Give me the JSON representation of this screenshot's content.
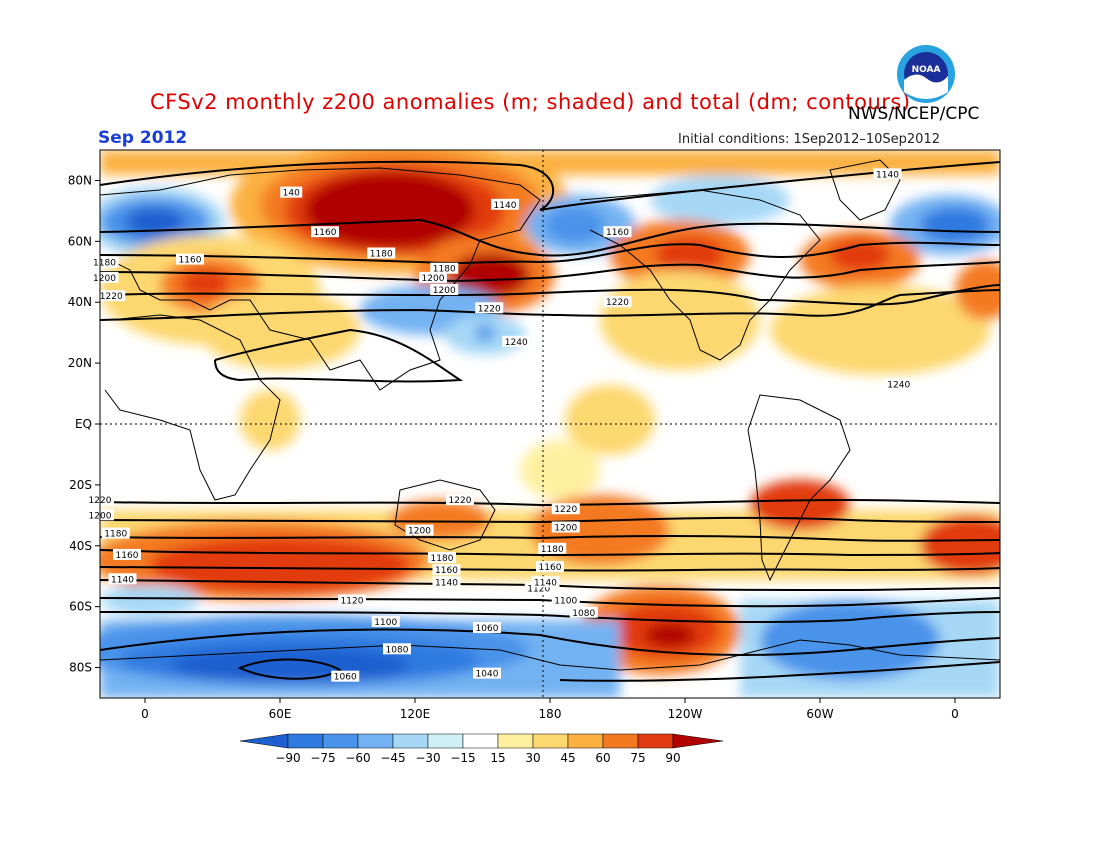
{
  "title": "CFSv2 monthly z200 anomalies (m; shaded) and total (dm; contours)",
  "credit": "NWS/NCEP/CPC",
  "month": "Sep 2012",
  "initial_conditions": "Initial conditions: 1Sep2012–10Sep2012",
  "logo_text": "NOAA",
  "lat_labels": [
    "80N",
    "60N",
    "40N",
    "20N",
    "EQ",
    "20S",
    "40S",
    "60S",
    "80S"
  ],
  "lon_labels": [
    "0",
    "60E",
    "120E",
    "180",
    "120W",
    "60W",
    "0"
  ],
  "colorbar": {
    "labels": [
      "−90",
      "−75",
      "−60",
      "−45",
      "−30",
      "−15",
      "15",
      "30",
      "45",
      "60",
      "75",
      "90"
    ],
    "colors": [
      "#1d5fcf",
      "#2f7ae0",
      "#4a93ea",
      "#73b2f2",
      "#a6d8f6",
      "#d0f0f8",
      "#ffffff",
      "#fff0a0",
      "#fdd870",
      "#fbb040",
      "#f47a20",
      "#e23a10",
      "#b00000"
    ]
  },
  "contour_labels": [
    {
      "text": "1140",
      "lon": -30,
      "lat": 82
    },
    {
      "text": "140",
      "lon": -295,
      "lat": 76
    },
    {
      "text": "1160",
      "lon": -280,
      "lat": 63
    },
    {
      "text": "1180",
      "lon": -255,
      "lat": 56
    },
    {
      "text": "1200",
      "lon": -232,
      "lat": 48
    },
    {
      "text": "1220",
      "lon": -207,
      "lat": 38
    },
    {
      "text": "1240",
      "lon": -195,
      "lat": 27
    },
    {
      "text": "1180",
      "lon": -18,
      "lat": 53
    },
    {
      "text": "1200",
      "lon": -18,
      "lat": 48
    },
    {
      "text": "1220",
      "lon": -15,
      "lat": 42
    },
    {
      "text": "1160",
      "lon": 20,
      "lat": 54
    },
    {
      "text": "1240",
      "lon": -25,
      "lat": 13
    },
    {
      "text": "1140",
      "lon": 160,
      "lat": 72
    },
    {
      "text": "1160",
      "lon": 210,
      "lat": 63
    },
    {
      "text": "1180",
      "lon": 133,
      "lat": 51
    },
    {
      "text": "1200",
      "lon": 133,
      "lat": 44
    },
    {
      "text": "1220",
      "lon": 210,
      "lat": 40
    },
    {
      "text": "1220",
      "lon": -220,
      "lat": -25
    },
    {
      "text": "1200",
      "lon": -238,
      "lat": -35
    },
    {
      "text": "1180",
      "lon": -228,
      "lat": -44
    },
    {
      "text": "1160",
      "lon": -226,
      "lat": -48
    },
    {
      "text": "1140",
      "lon": -226,
      "lat": -52
    },
    {
      "text": "1120",
      "lon": -185,
      "lat": -54
    },
    {
      "text": "1100",
      "lon": -173,
      "lat": -58
    },
    {
      "text": "1080",
      "lon": -165,
      "lat": -62
    },
    {
      "text": "1060",
      "lon": -208,
      "lat": -67
    },
    {
      "text": "1040",
      "lon": -208,
      "lat": -82
    },
    {
      "text": "1220",
      "lon": -20,
      "lat": -25
    },
    {
      "text": "1200",
      "lon": -20,
      "lat": -30
    },
    {
      "text": "1180",
      "lon": -13,
      "lat": -36
    },
    {
      "text": "1160",
      "lon": -8,
      "lat": -43
    },
    {
      "text": "1140",
      "lon": -10,
      "lat": -51
    },
    {
      "text": "1220",
      "lon": 187,
      "lat": -28
    },
    {
      "text": "1200",
      "lon": 187,
      "lat": -34
    },
    {
      "text": "1180",
      "lon": 181,
      "lat": -41
    },
    {
      "text": "1160",
      "lon": 180,
      "lat": -47
    },
    {
      "text": "1140",
      "lon": 178,
      "lat": -52
    },
    {
      "text": "1120",
      "lon": 92,
      "lat": -58
    },
    {
      "text": "1100",
      "lon": 107,
      "lat": -65
    },
    {
      "text": "1080",
      "lon": 112,
      "lat": -74
    },
    {
      "text": "1060",
      "lon": 89,
      "lat": -83
    }
  ]
}
